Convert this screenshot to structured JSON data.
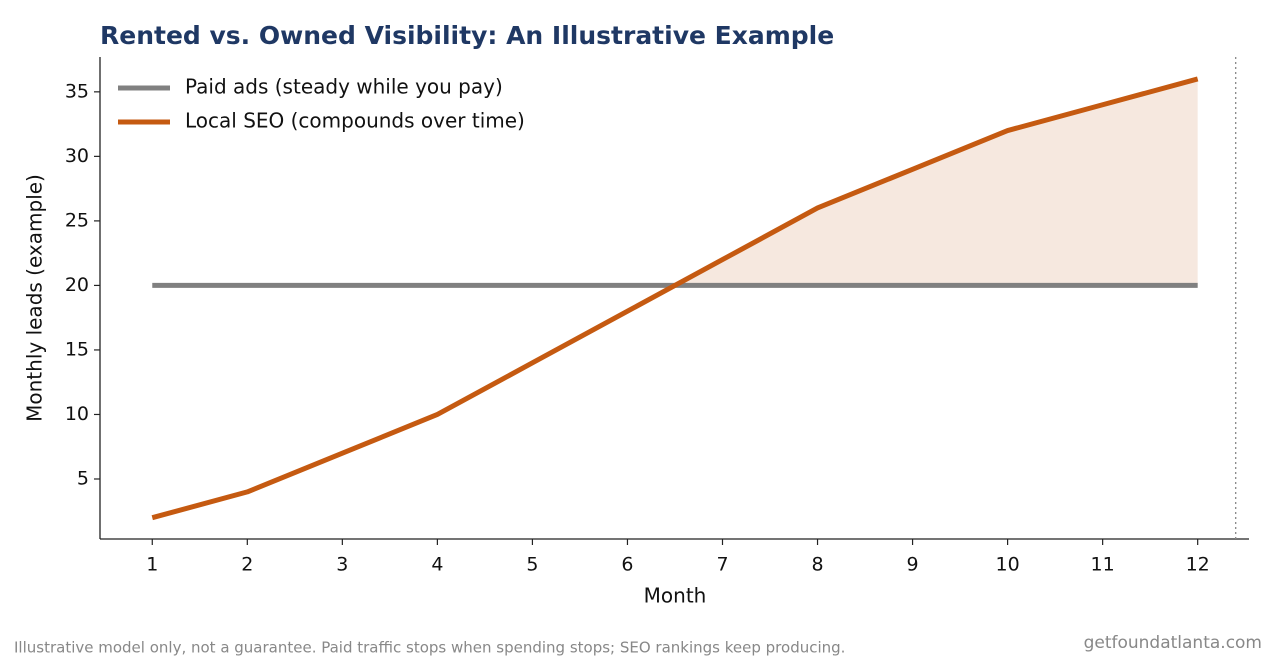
{
  "chart_data": {
    "type": "line",
    "title": "Rented vs. Owned Visibility: An Illustrative Example",
    "xlabel": "Month",
    "ylabel": "Monthly leads (example)",
    "x": [
      1,
      2,
      3,
      4,
      5,
      6,
      7,
      8,
      9,
      10,
      11,
      12
    ],
    "series": [
      {
        "name": "Paid ads (steady while you pay)",
        "color": "#808080",
        "values": [
          20,
          20,
          20,
          20,
          20,
          20,
          20,
          20,
          20,
          20,
          20,
          20
        ]
      },
      {
        "name": "Local SEO (compounds over time)",
        "color": "#c55a11",
        "values": [
          2,
          4,
          7,
          10,
          14,
          18,
          22,
          26,
          29,
          32,
          34,
          36
        ]
      }
    ],
    "fill_color": "#f6e8df",
    "reference_line_x": 12.4,
    "xlim": [
      0.45,
      12.54
    ],
    "xticks": [
      1,
      2,
      3,
      4,
      5,
      6,
      7,
      8,
      9,
      10,
      11,
      12
    ],
    "ylim": [
      0.35,
      37.7
    ],
    "yticks": [
      5,
      10,
      15,
      20,
      25,
      30,
      35
    ],
    "legend": "upper-left",
    "footnote": "Illustrative model only, not a guarantee. Paid traffic stops when spending stops; SEO rankings keep producing.",
    "source": "getfoundatlanta.com"
  }
}
